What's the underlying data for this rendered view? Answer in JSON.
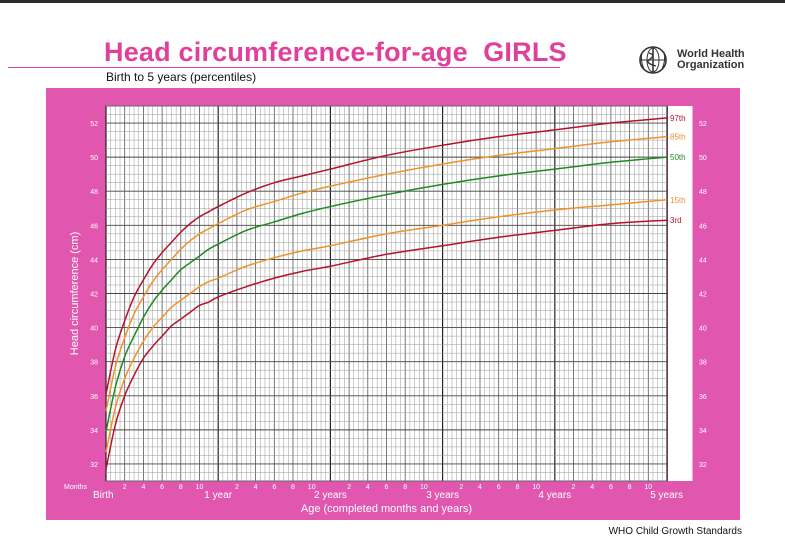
{
  "title": "Head circumference-for-age  GIRLS",
  "subtitle": "Birth to 5 years (percentiles)",
  "org": {
    "line1": "World Health",
    "line2": "Organization",
    "logo_icon": "who-emblem-icon"
  },
  "footer": "WHO Child Growth Standards",
  "colors": {
    "panel": "#e157b0",
    "title": "#e0409a",
    "p3_97": "#b5122b",
    "p15_85": "#f0922b",
    "p50": "#1f8a1f"
  },
  "chart_data": {
    "type": "line",
    "title": "Head circumference-for-age  GIRLS",
    "subtitle": "Birth to 5 years (percentiles)",
    "xlabel": "Age (completed months and years)",
    "ylabel": "Head circumference (cm)",
    "xlim": [
      0,
      60
    ],
    "ylim": [
      31,
      53
    ],
    "grid": true,
    "months_label": "Months",
    "x_minor_ticks": [
      "2",
      "4",
      "6",
      "8",
      "10",
      "2",
      "4",
      "6",
      "8",
      "10",
      "2",
      "4",
      "6",
      "8",
      "10",
      "2",
      "4",
      "6",
      "8",
      "10",
      "2",
      "4",
      "6",
      "8",
      "10"
    ],
    "x_minor_values": [
      2,
      4,
      6,
      8,
      10,
      14,
      16,
      18,
      20,
      22,
      26,
      28,
      30,
      32,
      34,
      38,
      40,
      42,
      44,
      46,
      50,
      52,
      54,
      56,
      58
    ],
    "x_major_ticks": [
      "Birth",
      "1 year",
      "2 years",
      "3 years",
      "4 years",
      "5 years"
    ],
    "x_major_values": [
      0,
      12,
      24,
      36,
      48,
      60
    ],
    "y_ticks": [
      "32",
      "34",
      "36",
      "38",
      "40",
      "42",
      "44",
      "46",
      "48",
      "50",
      "52"
    ],
    "y_tick_values": [
      32,
      34,
      36,
      38,
      40,
      42,
      44,
      46,
      48,
      50,
      52
    ],
    "x": [
      0,
      1,
      2,
      3,
      4,
      5,
      6,
      7,
      8,
      9,
      10,
      11,
      12,
      15,
      18,
      21,
      24,
      30,
      36,
      42,
      48,
      54,
      60
    ],
    "series": [
      {
        "name": "3rd",
        "color_key": "p3_97",
        "values": [
          31.7,
          34.3,
          36.0,
          37.2,
          38.2,
          38.9,
          39.5,
          40.1,
          40.5,
          40.9,
          41.3,
          41.5,
          41.8,
          42.4,
          42.9,
          43.3,
          43.6,
          44.3,
          44.8,
          45.3,
          45.7,
          46.1,
          46.3
        ]
      },
      {
        "name": "15th",
        "color_key": "p15_85",
        "values": [
          32.7,
          35.3,
          37.0,
          38.2,
          39.2,
          40.0,
          40.6,
          41.2,
          41.6,
          42.0,
          42.4,
          42.7,
          42.9,
          43.6,
          44.1,
          44.5,
          44.8,
          45.5,
          46.0,
          46.5,
          46.9,
          47.2,
          47.5
        ]
      },
      {
        "name": "50th",
        "color_key": "p50",
        "values": [
          33.9,
          36.5,
          38.3,
          39.5,
          40.6,
          41.5,
          42.2,
          42.8,
          43.4,
          43.8,
          44.2,
          44.6,
          44.9,
          45.7,
          46.2,
          46.7,
          47.1,
          47.8,
          48.4,
          48.9,
          49.3,
          49.7,
          50.0
        ]
      },
      {
        "name": "85th",
        "color_key": "p15_85",
        "values": [
          35.1,
          37.7,
          39.4,
          40.8,
          41.8,
          42.7,
          43.4,
          44.0,
          44.6,
          45.1,
          45.5,
          45.8,
          46.1,
          46.9,
          47.4,
          47.9,
          48.3,
          49.0,
          49.6,
          50.1,
          50.5,
          50.9,
          51.2
        ]
      },
      {
        "name": "97th",
        "color_key": "p3_97",
        "values": [
          36.1,
          38.7,
          40.4,
          41.8,
          42.8,
          43.7,
          44.4,
          45.0,
          45.6,
          46.1,
          46.5,
          46.8,
          47.1,
          47.9,
          48.5,
          48.9,
          49.3,
          50.1,
          50.7,
          51.2,
          51.6,
          52.0,
          52.3
        ]
      }
    ]
  }
}
